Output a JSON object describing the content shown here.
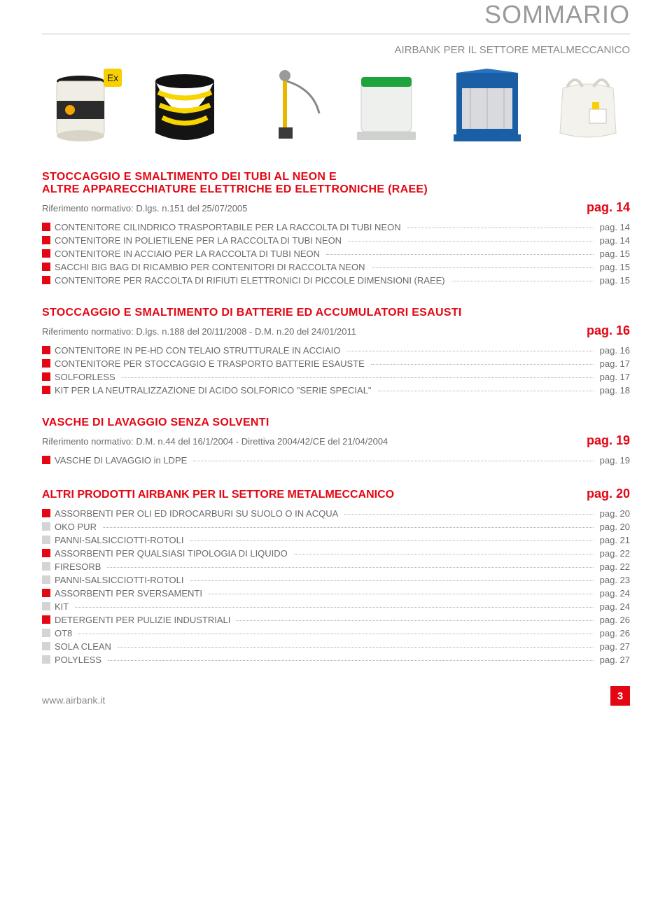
{
  "page_title": "SOMMARIO",
  "subtitle": "AIRBANK PER IL SETTORE METALMECCANICO",
  "products": [
    {
      "name": "drum-heater",
      "colors": [
        "#f0efe7",
        "#222222",
        "#f5b30a"
      ]
    },
    {
      "name": "spill-drum",
      "colors": [
        "#1a1a1a",
        "#f8d400"
      ]
    },
    {
      "name": "hand-pump",
      "colors": [
        "#e6b800",
        "#777777"
      ]
    },
    {
      "name": "pe-container",
      "colors": [
        "#e9ece9",
        "#1fa33c"
      ]
    },
    {
      "name": "storage-cabinet",
      "colors": [
        "#1a5ea6",
        "#cfd2d5"
      ]
    },
    {
      "name": "big-bag",
      "colors": [
        "#f4f2ec",
        "#d6d3c8"
      ]
    }
  ],
  "sections": [
    {
      "title": "STOCCAGGIO E SMALTIMENTO DEI TUBI AL NEON E",
      "title2": "ALTRE APPARECCHIATURE ELETTRICHE ED ELETTRONICHE (RAEE)",
      "ref": "Riferimento normativo: D.lgs. n.151 del 25/07/2005",
      "page": "pag. 14",
      "items": [
        {
          "sq": "red",
          "label": "CONTENITORE CILINDRICO TRASPORTABILE PER LA RACCOLTA DI TUBI NEON",
          "page": "pag. 14"
        },
        {
          "sq": "red",
          "label": "CONTENITORE IN POLIETILENE PER LA RACCOLTA DI TUBI NEON",
          "page": "pag. 14"
        },
        {
          "sq": "red",
          "label": "CONTENITORE IN ACCIAIO PER LA RACCOLTA DI TUBI NEON",
          "page": "pag. 15"
        },
        {
          "sq": "red",
          "label": "SACCHI BIG BAG DI RICAMBIO PER CONTENITORI DI RACCOLTA NEON",
          "page": "pag. 15"
        },
        {
          "sq": "red",
          "label": "CONTENITORE PER RACCOLTA DI RIFIUTI ELETTRONICI DI PICCOLE DIMENSIONI (RAEE)",
          "page": "pag. 15"
        }
      ]
    },
    {
      "title": "STOCCAGGIO E SMALTIMENTO DI BATTERIE ED ACCUMULATORI ESAUSTI",
      "ref": "Riferimento normativo: D.lgs. n.188 del 20/11/2008 - D.M. n.20 del 24/01/2011",
      "page": "pag. 16",
      "items": [
        {
          "sq": "red",
          "label": "CONTENITORE IN PE-HD CON TELAIO STRUTTURALE IN ACCIAIO",
          "page": "pag. 16"
        },
        {
          "sq": "red",
          "label": "CONTENITORE PER STOCCAGGIO E TRASPORTO BATTERIE ESAUSTE",
          "page": "pag. 17"
        },
        {
          "sq": "red",
          "label": "SOLFORLESS",
          "page": "pag. 17"
        },
        {
          "sq": "red",
          "label": "KIT PER LA NEUTRALIZZAZIONE DI ACIDO SOLFORICO \"SERIE SPECIAL\"",
          "page": "pag. 18"
        }
      ]
    },
    {
      "title": "VASCHE DI LAVAGGIO SENZA SOLVENTI",
      "ref": "Riferimento normativo: D.M. n.44 del 16/1/2004 - Direttiva 2004/42/CE del 21/04/2004",
      "page": "pag. 19",
      "items": [
        {
          "sq": "red",
          "label": "VASCHE DI LAVAGGIO in LDPE",
          "page": "pag. 19"
        }
      ]
    }
  ],
  "band": {
    "title": "ALTRI PRODOTTI AIRBANK PER IL SETTORE METALMECCANICO",
    "page": "pag. 20",
    "items": [
      {
        "sq": "red",
        "label": "ASSORBENTI PER OLI ED IDROCARBURI SU SUOLO O IN ACQUA",
        "page": "pag. 20"
      },
      {
        "sq": "grey",
        "label": "OKO PUR",
        "page": "pag. 20"
      },
      {
        "sq": "grey",
        "label": "PANNI-SALSICCIOTTI-ROTOLI",
        "page": "pag. 21"
      },
      {
        "sq": "red",
        "label": "ASSORBENTI PER QUALSIASI TIPOLOGIA DI LIQUIDO",
        "page": "pag. 22"
      },
      {
        "sq": "grey",
        "label": "FIRESORB",
        "page": "pag. 22"
      },
      {
        "sq": "grey",
        "label": "PANNI-SALSICCIOTTI-ROTOLI",
        "page": "pag. 23"
      },
      {
        "sq": "red",
        "label": "ASSORBENTI PER SVERSAMENTI",
        "page": "pag. 24"
      },
      {
        "sq": "grey",
        "label": "KIT",
        "page": "pag. 24"
      },
      {
        "sq": "red",
        "label": "DETERGENTI PER PULIZIE INDUSTRIALI",
        "page": "pag. 26"
      },
      {
        "sq": "grey",
        "label": "OT8",
        "page": "pag. 26"
      },
      {
        "sq": "grey",
        "label": "SOLA CLEAN",
        "page": "pag. 27"
      },
      {
        "sq": "grey",
        "label": "POLYLESS",
        "page": "pag. 27"
      }
    ]
  },
  "footer": {
    "url": "www.airbank.it",
    "page_number": "3"
  },
  "colors": {
    "accent": "#e30613",
    "text": "#4a4a4a",
    "muted": "#8a8a8a",
    "rule": "#c0c0c0",
    "dot": "#b0b0b0",
    "grey_sq": "#d4d4d4",
    "bg": "#ffffff"
  }
}
